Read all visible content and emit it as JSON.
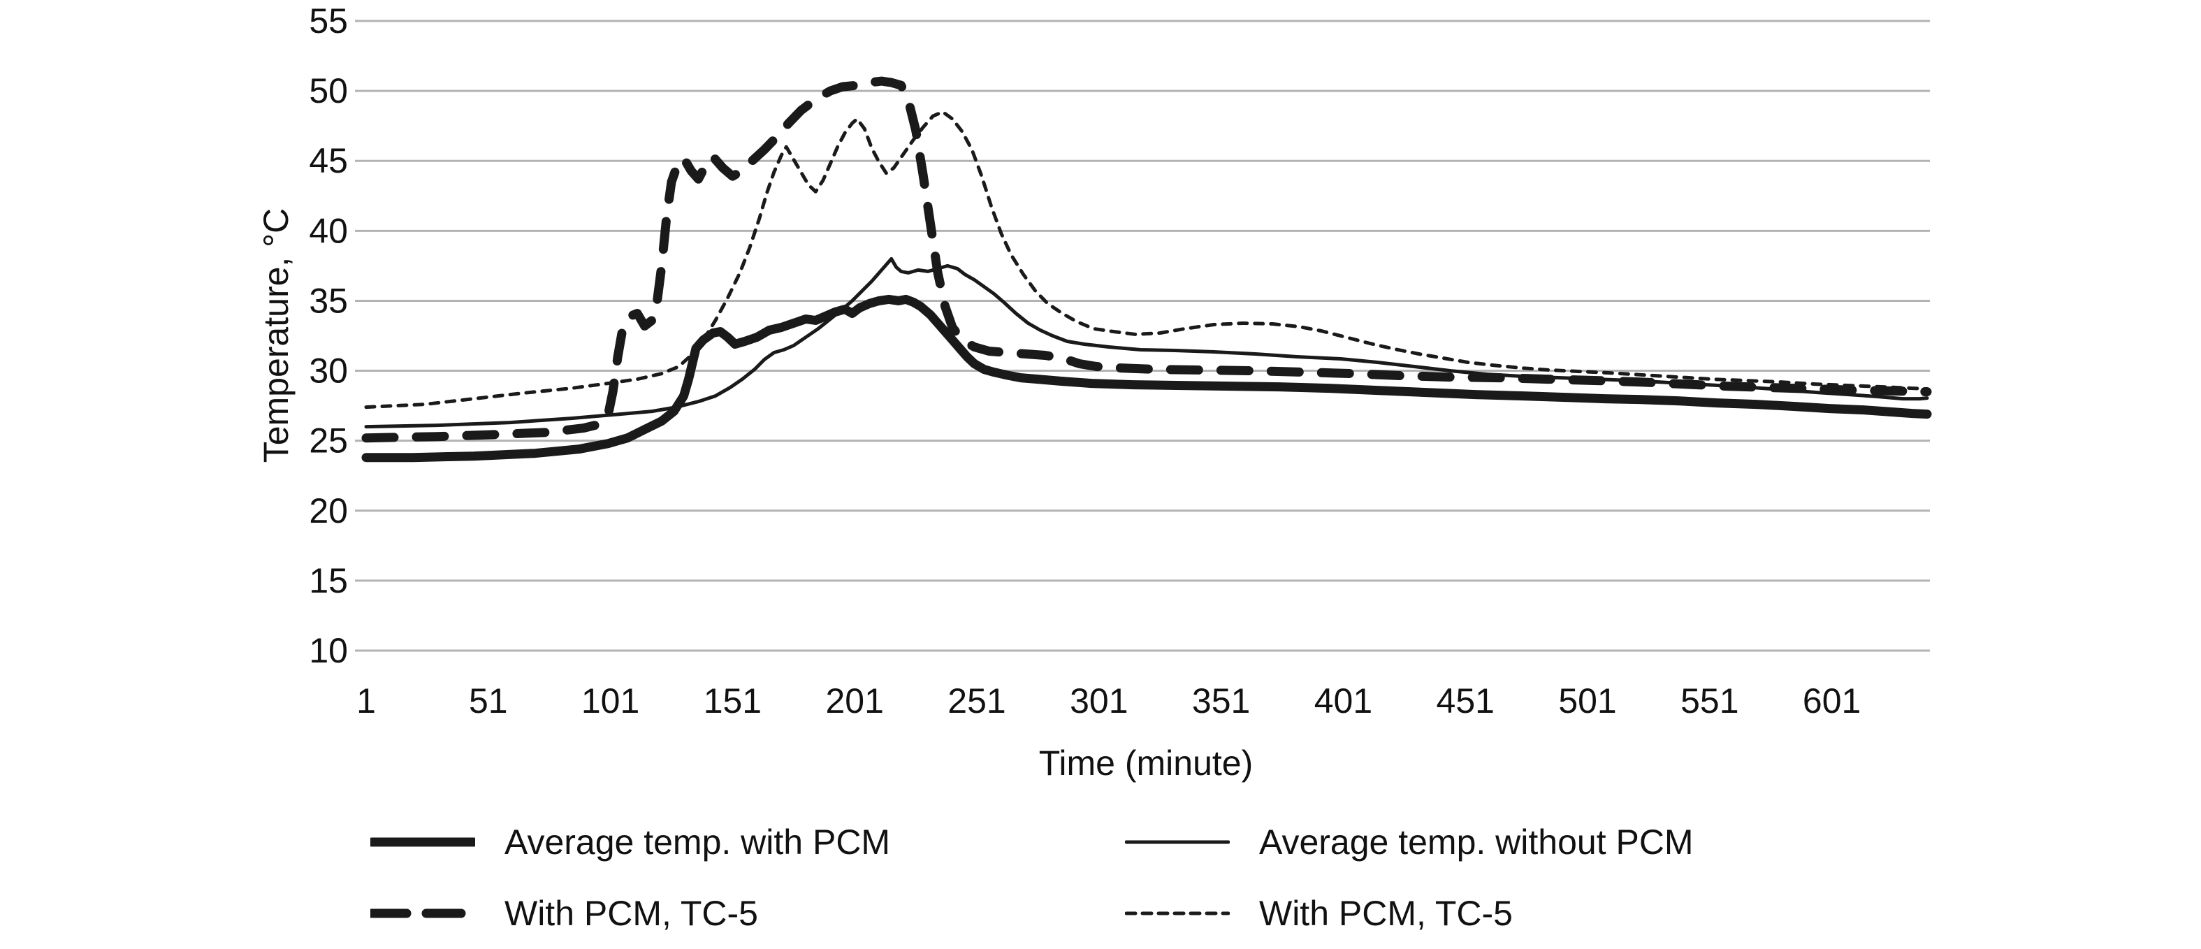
{
  "chart_data": {
    "type": "line",
    "title": "",
    "background": "#ffffff",
    "grid": {
      "horizontal": true,
      "vertical": false,
      "color": "#b3b3b3"
    },
    "line_color": "#1a1a1a",
    "text_color": "#111111",
    "legend_position": "bottom",
    "x_axis": {
      "title": "Time (minute)",
      "min": 1,
      "max": 640,
      "ticks": [
        1,
        51,
        101,
        151,
        201,
        251,
        301,
        351,
        401,
        451,
        501,
        551,
        601
      ]
    },
    "y_axis": {
      "title": "Temperature, °C",
      "min": 10,
      "max": 55,
      "ticks": [
        10,
        15,
        20,
        25,
        30,
        35,
        40,
        45,
        50,
        55
      ]
    },
    "series": [
      {
        "name": "Average temp. with PCM",
        "style": {
          "stroke_width": 13,
          "dash": null,
          "legend_dash": null
        },
        "points": [
          [
            1,
            23.8
          ],
          [
            20,
            23.8
          ],
          [
            45,
            23.9
          ],
          [
            70,
            24.1
          ],
          [
            88,
            24.4
          ],
          [
            100,
            24.8
          ],
          [
            108,
            25.2
          ],
          [
            115,
            25.8
          ],
          [
            122,
            26.4
          ],
          [
            127,
            27.1
          ],
          [
            131,
            28.2
          ],
          [
            133,
            29.4
          ],
          [
            136,
            31.6
          ],
          [
            139,
            32.2
          ],
          [
            143,
            32.7
          ],
          [
            146,
            32.8
          ],
          [
            149,
            32.4
          ],
          [
            152,
            31.9
          ],
          [
            156,
            32.1
          ],
          [
            161,
            32.4
          ],
          [
            166,
            32.9
          ],
          [
            171,
            33.1
          ],
          [
            176,
            33.4
          ],
          [
            181,
            33.7
          ],
          [
            185,
            33.6
          ],
          [
            189,
            33.9
          ],
          [
            193,
            34.2
          ],
          [
            197,
            34.4
          ],
          [
            200,
            34.1
          ],
          [
            203,
            34.5
          ],
          [
            207,
            34.8
          ],
          [
            211,
            35.0
          ],
          [
            215,
            35.1
          ],
          [
            219,
            35.0
          ],
          [
            222,
            35.1
          ],
          [
            225,
            34.9
          ],
          [
            228,
            34.6
          ],
          [
            232,
            34.0
          ],
          [
            235,
            33.4
          ],
          [
            238,
            32.8
          ],
          [
            241,
            32.2
          ],
          [
            244,
            31.6
          ],
          [
            247,
            31.0
          ],
          [
            250,
            30.5
          ],
          [
            254,
            30.1
          ],
          [
            258,
            29.9
          ],
          [
            263,
            29.7
          ],
          [
            269,
            29.5
          ],
          [
            276,
            29.4
          ],
          [
            286,
            29.25
          ],
          [
            298,
            29.1
          ],
          [
            315,
            29.0
          ],
          [
            335,
            28.95
          ],
          [
            355,
            28.9
          ],
          [
            375,
            28.85
          ],
          [
            395,
            28.75
          ],
          [
            415,
            28.6
          ],
          [
            435,
            28.45
          ],
          [
            455,
            28.3
          ],
          [
            475,
            28.2
          ],
          [
            492,
            28.1
          ],
          [
            508,
            28.0
          ],
          [
            522,
            27.95
          ],
          [
            538,
            27.85
          ],
          [
            554,
            27.7
          ],
          [
            570,
            27.6
          ],
          [
            586,
            27.45
          ],
          [
            600,
            27.3
          ],
          [
            614,
            27.2
          ],
          [
            626,
            27.05
          ],
          [
            634,
            26.95
          ],
          [
            640,
            26.9
          ]
        ]
      },
      {
        "name": "Average temp. without PCM",
        "style": {
          "stroke_width": 5,
          "dash": null,
          "legend_dash": null
        },
        "points": [
          [
            1,
            26.0
          ],
          [
            30,
            26.1
          ],
          [
            60,
            26.3
          ],
          [
            85,
            26.6
          ],
          [
            105,
            26.9
          ],
          [
            118,
            27.1
          ],
          [
            128,
            27.4
          ],
          [
            137,
            27.8
          ],
          [
            144,
            28.2
          ],
          [
            150,
            28.8
          ],
          [
            155,
            29.4
          ],
          [
            160,
            30.1
          ],
          [
            164,
            30.8
          ],
          [
            168,
            31.3
          ],
          [
            172,
            31.5
          ],
          [
            176,
            31.8
          ],
          [
            181,
            32.4
          ],
          [
            186,
            33.0
          ],
          [
            191,
            33.7
          ],
          [
            196,
            34.4
          ],
          [
            200,
            35.0
          ],
          [
            204,
            35.7
          ],
          [
            208,
            36.4
          ],
          [
            211,
            37.0
          ],
          [
            214,
            37.6
          ],
          [
            216,
            38.0
          ],
          [
            218,
            37.4
          ],
          [
            220,
            37.1
          ],
          [
            223,
            37.0
          ],
          [
            227,
            37.2
          ],
          [
            231,
            37.1
          ],
          [
            235,
            37.3
          ],
          [
            239,
            37.5
          ],
          [
            243,
            37.3
          ],
          [
            246,
            36.9
          ],
          [
            250,
            36.5
          ],
          [
            254,
            36.0
          ],
          [
            258,
            35.5
          ],
          [
            262,
            34.9
          ],
          [
            267,
            34.1
          ],
          [
            272,
            33.4
          ],
          [
            277,
            32.9
          ],
          [
            282,
            32.5
          ],
          [
            288,
            32.1
          ],
          [
            295,
            31.9
          ],
          [
            305,
            31.7
          ],
          [
            318,
            31.5
          ],
          [
            332,
            31.45
          ],
          [
            348,
            31.35
          ],
          [
            365,
            31.2
          ],
          [
            382,
            31.0
          ],
          [
            400,
            30.85
          ],
          [
            415,
            30.6
          ],
          [
            430,
            30.3
          ],
          [
            445,
            30.0
          ],
          [
            460,
            29.75
          ],
          [
            475,
            29.6
          ],
          [
            490,
            29.5
          ],
          [
            505,
            29.4
          ],
          [
            520,
            29.3
          ],
          [
            535,
            29.15
          ],
          [
            550,
            29.0
          ],
          [
            565,
            28.85
          ],
          [
            580,
            28.65
          ],
          [
            595,
            28.45
          ],
          [
            608,
            28.3
          ],
          [
            620,
            28.15
          ],
          [
            630,
            28.0
          ],
          [
            637,
            28.0
          ],
          [
            640,
            28.05
          ]
        ]
      },
      {
        "name": "With PCM, TC-5",
        "style": {
          "stroke_width": 13,
          "dash": "40 32",
          "legend_dash": "50 28"
        },
        "points": [
          [
            1,
            25.2
          ],
          [
            30,
            25.3
          ],
          [
            55,
            25.45
          ],
          [
            75,
            25.6
          ],
          [
            90,
            25.9
          ],
          [
            97,
            26.2
          ],
          [
            100,
            26.8
          ],
          [
            102,
            28.5
          ],
          [
            104,
            31.0
          ],
          [
            106,
            33.0
          ],
          [
            109,
            33.9
          ],
          [
            112,
            34.1
          ],
          [
            115,
            33.2
          ],
          [
            118,
            33.6
          ],
          [
            120,
            34.8
          ],
          [
            122,
            37.5
          ],
          [
            124,
            41.0
          ],
          [
            126,
            43.5
          ],
          [
            128,
            44.5
          ],
          [
            131,
            45.2
          ],
          [
            134,
            44.3
          ],
          [
            137,
            43.7
          ],
          [
            140,
            44.7
          ],
          [
            143,
            45.3
          ],
          [
            147,
            44.5
          ],
          [
            151,
            43.9
          ],
          [
            155,
            44.3
          ],
          [
            159,
            45.0
          ],
          [
            164,
            45.8
          ],
          [
            169,
            46.7
          ],
          [
            174,
            47.7
          ],
          [
            179,
            48.6
          ],
          [
            185,
            49.4
          ],
          [
            191,
            50.0
          ],
          [
            196,
            50.3
          ],
          [
            202,
            50.4
          ],
          [
            207,
            50.6
          ],
          [
            212,
            50.7
          ],
          [
            216,
            50.6
          ],
          [
            220,
            50.4
          ],
          [
            223,
            49.3
          ],
          [
            226,
            47.2
          ],
          [
            229,
            44.0
          ],
          [
            232,
            40.5
          ],
          [
            235,
            37.0
          ],
          [
            238,
            34.6
          ],
          [
            241,
            33.1
          ],
          [
            245,
            32.2
          ],
          [
            250,
            31.7
          ],
          [
            256,
            31.4
          ],
          [
            263,
            31.3
          ],
          [
            271,
            31.2
          ],
          [
            279,
            31.1
          ],
          [
            286,
            30.9
          ],
          [
            293,
            30.5
          ],
          [
            300,
            30.3
          ],
          [
            310,
            30.2
          ],
          [
            325,
            30.1
          ],
          [
            345,
            30.05
          ],
          [
            365,
            30.0
          ],
          [
            385,
            29.9
          ],
          [
            405,
            29.8
          ],
          [
            425,
            29.65
          ],
          [
            445,
            29.55
          ],
          [
            465,
            29.5
          ],
          [
            485,
            29.4
          ],
          [
            505,
            29.3
          ],
          [
            522,
            29.2
          ],
          [
            540,
            29.05
          ],
          [
            558,
            28.9
          ],
          [
            576,
            28.8
          ],
          [
            594,
            28.7
          ],
          [
            612,
            28.6
          ],
          [
            628,
            28.55
          ],
          [
            640,
            28.5
          ]
        ]
      },
      {
        "name": "With PCM, TC-5",
        "style": {
          "stroke_width": 5,
          "dash": "12 11",
          "legend_dash": "13 10"
        },
        "points": [
          [
            1,
            27.4
          ],
          [
            25,
            27.6
          ],
          [
            45,
            28.0
          ],
          [
            65,
            28.4
          ],
          [
            85,
            28.75
          ],
          [
            100,
            29.1
          ],
          [
            112,
            29.4
          ],
          [
            122,
            29.8
          ],
          [
            129,
            30.3
          ],
          [
            134,
            31.1
          ],
          [
            139,
            32.2
          ],
          [
            144,
            33.6
          ],
          [
            149,
            35.2
          ],
          [
            154,
            37.0
          ],
          [
            158,
            38.8
          ],
          [
            162,
            40.9
          ],
          [
            165,
            42.7
          ],
          [
            168,
            44.2
          ],
          [
            171,
            45.4
          ],
          [
            173,
            46.0
          ],
          [
            176,
            45.1
          ],
          [
            179,
            44.2
          ],
          [
            182,
            43.3
          ],
          [
            185,
            42.8
          ],
          [
            188,
            43.6
          ],
          [
            191,
            44.8
          ],
          [
            194,
            46.0
          ],
          [
            197,
            47.0
          ],
          [
            200,
            47.7
          ],
          [
            202,
            48.0
          ],
          [
            205,
            47.3
          ],
          [
            208,
            45.9
          ],
          [
            211,
            44.9
          ],
          [
            214,
            44.1
          ],
          [
            217,
            44.5
          ],
          [
            221,
            45.5
          ],
          [
            225,
            46.5
          ],
          [
            229,
            47.4
          ],
          [
            233,
            48.2
          ],
          [
            237,
            48.5
          ],
          [
            241,
            48.0
          ],
          [
            245,
            47.1
          ],
          [
            249,
            45.8
          ],
          [
            253,
            43.9
          ],
          [
            257,
            41.7
          ],
          [
            261,
            39.8
          ],
          [
            265,
            38.3
          ],
          [
            270,
            36.9
          ],
          [
            275,
            35.7
          ],
          [
            280,
            34.8
          ],
          [
            286,
            34.1
          ],
          [
            292,
            33.5
          ],
          [
            299,
            33.0
          ],
          [
            307,
            32.8
          ],
          [
            316,
            32.6
          ],
          [
            326,
            32.7
          ],
          [
            336,
            33.0
          ],
          [
            348,
            33.3
          ],
          [
            360,
            33.4
          ],
          [
            372,
            33.35
          ],
          [
            383,
            33.15
          ],
          [
            392,
            32.85
          ],
          [
            402,
            32.4
          ],
          [
            412,
            31.95
          ],
          [
            422,
            31.55
          ],
          [
            432,
            31.2
          ],
          [
            442,
            30.9
          ],
          [
            452,
            30.6
          ],
          [
            462,
            30.4
          ],
          [
            474,
            30.2
          ],
          [
            486,
            30.05
          ],
          [
            498,
            29.95
          ],
          [
            510,
            29.85
          ],
          [
            524,
            29.7
          ],
          [
            538,
            29.55
          ],
          [
            552,
            29.4
          ],
          [
            566,
            29.3
          ],
          [
            580,
            29.2
          ],
          [
            594,
            29.05
          ],
          [
            608,
            28.95
          ],
          [
            622,
            28.85
          ],
          [
            634,
            28.75
          ],
          [
            640,
            28.7
          ]
        ]
      }
    ]
  }
}
